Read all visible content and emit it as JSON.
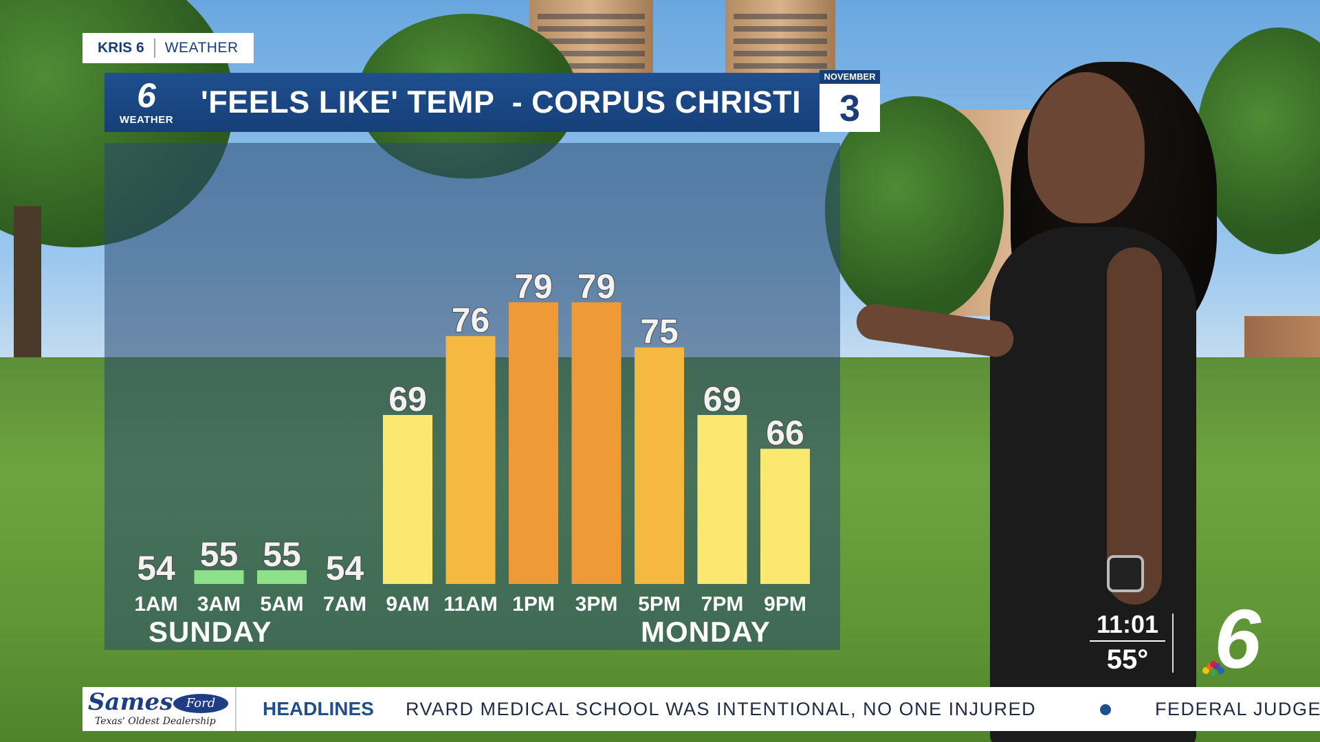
{
  "station": {
    "brand": "KRIS 6",
    "section": "WEATHER"
  },
  "banner": {
    "logo_number": "6",
    "logo_label": "WEATHER",
    "title": "'FEELS LIKE' TEMP  - CORPUS CHRISTI"
  },
  "date": {
    "month": "NOVEMBER",
    "day": "3"
  },
  "day_labels": {
    "first": "SUNDAY",
    "second": "MONDAY"
  },
  "clock": {
    "time": "11:01",
    "temp": "55°"
  },
  "corner_logo": "6",
  "ticker": {
    "sponsor_name": "Sames",
    "sponsor_oval": "Ford",
    "sponsor_tagline": "Texas' Oldest Dealership",
    "section": "HEADLINES",
    "item1": "RVARD MEDICAL SCHOOL WAS INTENTIONAL, NO ONE INJURED",
    "item2": "FEDERAL JUDGE"
  },
  "colors": {
    "cool": "#8fe08a",
    "mild": "#fbe870",
    "warm": "#f5b840",
    "hot": "#ee9a36"
  },
  "chart_data": {
    "type": "bar",
    "title": "'FEELS LIKE' TEMP  - CORPUS CHRISTI",
    "categories": [
      "1AM",
      "3AM",
      "5AM",
      "7AM",
      "9AM",
      "11AM",
      "1PM",
      "3PM",
      "5PM",
      "7PM",
      "9PM"
    ],
    "values": [
      54,
      55,
      55,
      54,
      69,
      76,
      79,
      79,
      75,
      69,
      66
    ],
    "bar_colors": [
      "none",
      "cool",
      "cool",
      "none",
      "mild",
      "warm",
      "hot",
      "hot",
      "warm",
      "mild",
      "mild"
    ],
    "ylim": [
      54,
      80
    ],
    "grid": false,
    "legend": "none"
  }
}
